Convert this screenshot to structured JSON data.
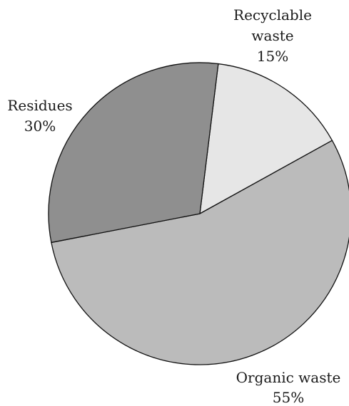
{
  "chart_data": {
    "type": "pie",
    "title": "",
    "slices": [
      {
        "label_lines": [
          "Recyclable",
          "waste"
        ],
        "value_label": "15%",
        "value": 15,
        "color": "#e6e6e6"
      },
      {
        "label_lines": [
          "Organic waste"
        ],
        "value_label": "55%",
        "value": 55,
        "color": "#bbbbbb"
      },
      {
        "label_lines": [
          "Residues"
        ],
        "value_label": "30%",
        "value": 30,
        "color": "#8f8f8f"
      }
    ],
    "start_angle_deg": 7,
    "direction": "clockwise",
    "legend": "none"
  }
}
